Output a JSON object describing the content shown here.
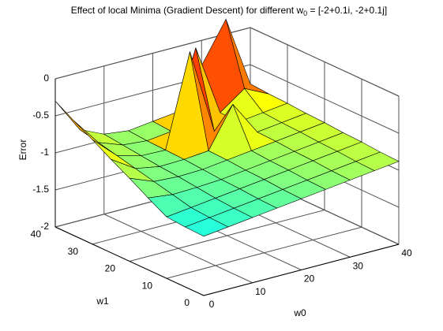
{
  "chart_data": {
    "type": "surface",
    "title": [
      "Effect of local Minima (Gradient Descent) for different w",
      "0",
      " = [-2+0.1i, -2+0.1j]"
    ],
    "xlabel": "w0",
    "ylabel": "w1",
    "zlabel": "Error",
    "x": [
      0,
      5,
      10,
      15,
      20,
      25,
      30,
      35,
      40
    ],
    "y": [
      0,
      5,
      10,
      15,
      20,
      25,
      30,
      35,
      40
    ],
    "z": [
      [
        -1.2,
        -1.16,
        -1.12,
        -1.08,
        -1.04,
        -1.0,
        -0.96,
        -0.92,
        -0.88
      ],
      [
        -1.19,
        -1.15,
        -1.11,
        -1.07,
        -1.03,
        -0.99,
        -0.95,
        -0.91,
        -0.87
      ],
      [
        -1.17,
        -1.13,
        -1.09,
        -1.05,
        -1.01,
        -0.97,
        -0.93,
        -0.89,
        -0.85
      ],
      [
        -1.03,
        -1.07,
        -1.06,
        -1.04,
        -1.0,
        -0.96,
        -0.92,
        -0.88,
        -0.84
      ],
      [
        -0.88,
        -1.01,
        -1.03,
        -1.02,
        -0.98,
        -0.94,
        -0.9,
        -0.86,
        -0.82
      ],
      [
        -0.74,
        -0.95,
        -1.01,
        -1.0,
        -0.97,
        -0.43,
        -0.89,
        -0.85,
        -0.81
      ],
      [
        -0.59,
        -0.89,
        -0.98,
        -0.99,
        0.25,
        -0.91,
        -0.87,
        -0.83,
        -0.79
      ],
      [
        -0.45,
        -0.83,
        -0.95,
        -0.98,
        -0.94,
        0.1,
        -0.86,
        -0.62,
        -0.78
      ],
      [
        -0.3,
        -0.77,
        -0.92,
        -0.96,
        -0.92,
        -0.88,
        -0.34,
        0.2,
        -0.76
      ]
    ],
    "xlim": [
      0,
      40
    ],
    "xticks": [
      0,
      10,
      20,
      30,
      40
    ],
    "ylim": [
      0,
      40
    ],
    "yticks": [
      0,
      10,
      20,
      30,
      40
    ],
    "zlim": [
      -2,
      0
    ],
    "zticks": [
      -2,
      -1.5,
      -1,
      -0.5,
      0
    ],
    "grid": true,
    "colormap": [
      "#00008f",
      "#0000ff",
      "#00ffff",
      "#ffff00",
      "#ff0000",
      "#800000"
    ]
  }
}
